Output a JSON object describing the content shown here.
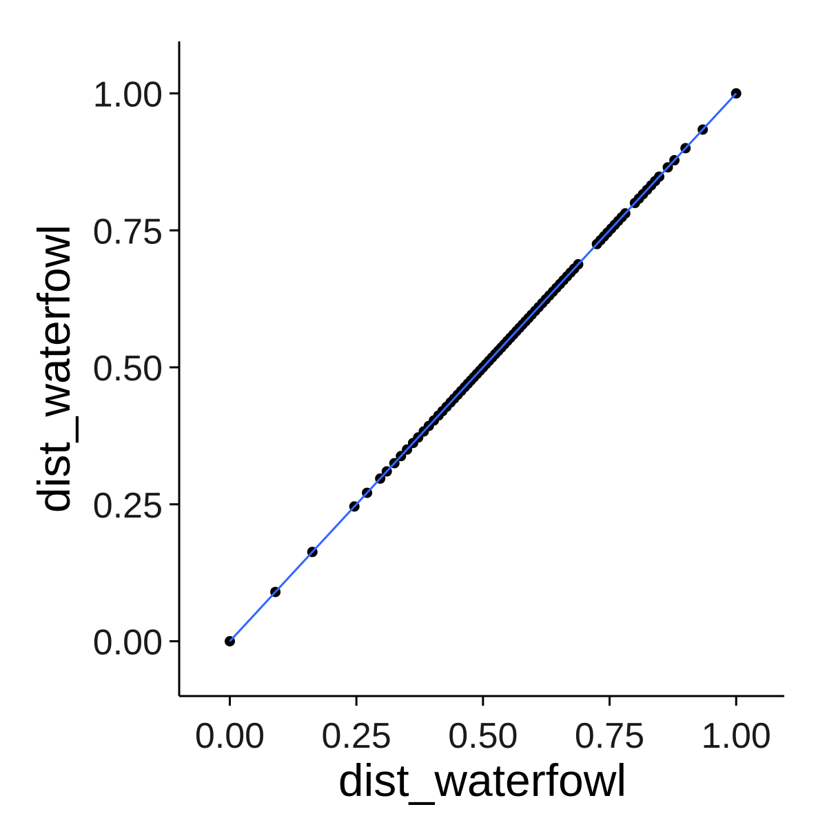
{
  "chart_data": {
    "type": "scatter",
    "xlabel": "dist_waterfowl",
    "ylabel": "dist_waterfowl",
    "xlim": [
      -0.1,
      1.095
    ],
    "ylim": [
      -0.1,
      1.095
    ],
    "xticks": [
      0,
      0.25,
      0.5,
      0.75,
      1
    ],
    "xtick_labels": [
      "0.00",
      "0.25",
      "0.50",
      "0.75",
      "1.00"
    ],
    "yticks": [
      0,
      0.25,
      0.5,
      0.75,
      1
    ],
    "ytick_labels": [
      "0.00",
      "0.25",
      "0.50",
      "0.75",
      "1.00"
    ],
    "grid": false,
    "legend": "none",
    "point_color": "#000000",
    "line_color": "#3366FF",
    "fit_line": {
      "x": [
        0,
        1
      ],
      "y": [
        0,
        1
      ]
    },
    "points": {
      "x": [
        0.0,
        0.09,
        0.163,
        0.246,
        0.271,
        0.297,
        0.31,
        0.325,
        0.338,
        0.35,
        0.362,
        0.372,
        0.383,
        0.393,
        0.403,
        0.412,
        0.42,
        0.428,
        0.436,
        0.443,
        0.45,
        0.457,
        0.464,
        0.47,
        0.476,
        0.482,
        0.488,
        0.494,
        0.5,
        0.506,
        0.512,
        0.518,
        0.524,
        0.53,
        0.536,
        0.542,
        0.548,
        0.554,
        0.56,
        0.566,
        0.572,
        0.578,
        0.584,
        0.59,
        0.596,
        0.603,
        0.61,
        0.617,
        0.624,
        0.631,
        0.638,
        0.645,
        0.652,
        0.659,
        0.666,
        0.673,
        0.68,
        0.688,
        0.725,
        0.732,
        0.739,
        0.746,
        0.753,
        0.76,
        0.767,
        0.774,
        0.781,
        0.8,
        0.808,
        0.816,
        0.824,
        0.832,
        0.84,
        0.848,
        0.865,
        0.878,
        0.9,
        0.934,
        1.0
      ],
      "y": [
        0.0,
        0.09,
        0.163,
        0.246,
        0.271,
        0.297,
        0.31,
        0.325,
        0.338,
        0.35,
        0.362,
        0.372,
        0.383,
        0.393,
        0.403,
        0.412,
        0.42,
        0.428,
        0.436,
        0.443,
        0.45,
        0.457,
        0.464,
        0.47,
        0.476,
        0.482,
        0.488,
        0.494,
        0.5,
        0.506,
        0.512,
        0.518,
        0.524,
        0.53,
        0.536,
        0.542,
        0.548,
        0.554,
        0.56,
        0.566,
        0.572,
        0.578,
        0.584,
        0.59,
        0.596,
        0.603,
        0.61,
        0.617,
        0.624,
        0.631,
        0.638,
        0.645,
        0.652,
        0.659,
        0.666,
        0.673,
        0.68,
        0.688,
        0.725,
        0.732,
        0.739,
        0.746,
        0.753,
        0.76,
        0.767,
        0.774,
        0.781,
        0.8,
        0.808,
        0.816,
        0.824,
        0.832,
        0.84,
        0.848,
        0.865,
        0.878,
        0.9,
        0.934,
        1.0
      ]
    }
  }
}
